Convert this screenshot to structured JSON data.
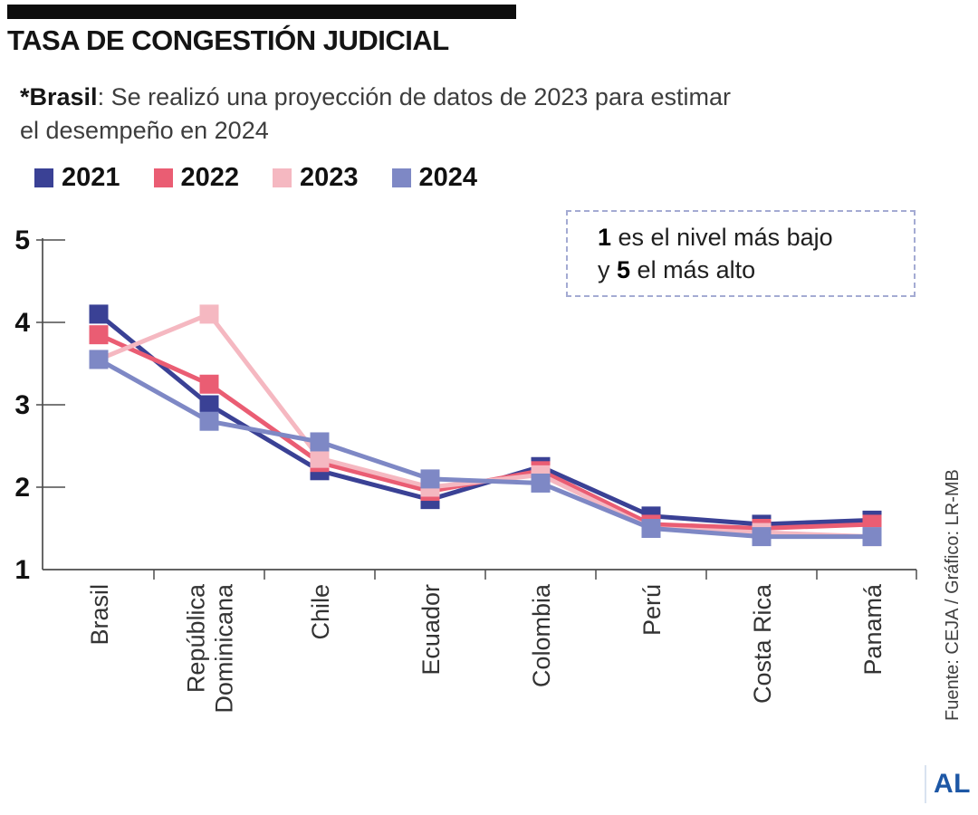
{
  "header": {
    "title": "TASA DE CONGESTIÓN JUDICIAL"
  },
  "note": {
    "line1_bold": "*Brasil",
    "line1_rest": ": Se realizó una proyección de datos de 2023 para estimar",
    "line2": "el desempeño en 2024"
  },
  "annotation": {
    "line1_bold": "1",
    "line1_text": " es el nivel más bajo",
    "line2_pre": "y ",
    "line2_bold": "5",
    "line2_text": " el más alto"
  },
  "footer": {
    "logo": "AL"
  },
  "chart_data": {
    "type": "line",
    "title": "TASA DE CONGESTIÓN JUDICIAL",
    "categories": [
      "Brasil",
      "República Dominicana",
      "Chile",
      "Ecuador",
      "Colombia",
      "Perú",
      "Costa Rica",
      "Panamá"
    ],
    "category_label_lines": [
      [
        "Brasil"
      ],
      [
        "República",
        "Dominicana"
      ],
      [
        "Chile"
      ],
      [
        "Ecuador"
      ],
      [
        "Colombia"
      ],
      [
        "Perú"
      ],
      [
        "Costa Rica"
      ],
      [
        "Panamá"
      ]
    ],
    "series": [
      {
        "name": "2021",
        "color": "#3a4195",
        "values": [
          4.1,
          3.0,
          2.2,
          1.85,
          2.25,
          1.65,
          1.55,
          1.6
        ]
      },
      {
        "name": "2022",
        "color": "#ea5d73",
        "values": [
          3.85,
          3.25,
          2.3,
          1.95,
          2.2,
          1.55,
          1.5,
          1.55
        ]
      },
      {
        "name": "2023",
        "color": "#f5b8c1",
        "values": [
          3.55,
          4.1,
          2.35,
          2.0,
          2.15,
          1.5,
          1.45,
          1.4
        ]
      },
      {
        "name": "2024",
        "color": "#7e88c5",
        "values": [
          3.55,
          2.8,
          2.55,
          2.1,
          2.05,
          1.5,
          1.4,
          1.4
        ]
      }
    ],
    "ylim": [
      1,
      5
    ],
    "yticks": [
      1,
      2,
      3,
      4,
      5
    ],
    "grid": false,
    "legend_position": "top",
    "scale_note": "1 es el nivel más bajo y 5 el más alto",
    "source": "Fuente: CEJA / Gráfico: LR-MB",
    "axis_color": "#4d4d4d"
  }
}
